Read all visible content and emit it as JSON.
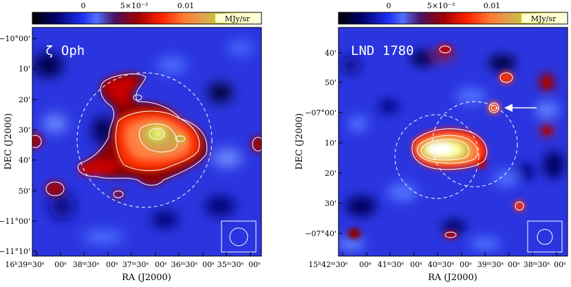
{
  "panels": [
    {
      "id": "zeta-oph",
      "title": "ζ Oph",
      "colorbar": {
        "ticks": [
          "0",
          "5×10⁻³",
          "0.01"
        ],
        "unit": "MJy/sr"
      },
      "ylabel": "DEC (J2000)",
      "xlabel": "RA (J2000)",
      "yticks": [
        "−10°00'",
        "10'",
        "20'",
        "30'",
        "40'",
        "50'",
        "−11°00'",
        "−11°10'"
      ],
      "xticks": [
        "16ʰ39ᵐ30ˢ",
        "00ˢ",
        "38ᵐ30ˢ",
        "00ˢ",
        "37ᵐ30ˢ",
        "00ˢ",
        "36ᵐ30ˢ",
        "00ˢ",
        "35ᵐ30ˢ",
        "00ˢ"
      ]
    },
    {
      "id": "lnd-1780",
      "title": "LND 1780",
      "colorbar": {
        "ticks": [
          "0",
          "5×10⁻³",
          "0.01"
        ],
        "unit": "MJy/sr"
      },
      "ylabel": "DEC (J2000)",
      "xlabel": "RA (J2000)",
      "yticks": [
        "40'",
        "50'",
        "−07°00'",
        "10'",
        "20'",
        "30'",
        "−07°40'"
      ],
      "xticks": [
        "15ʰ42ᵐ30ˢ",
        "00ˢ",
        "41ᵐ30ˢ",
        "00ˢ",
        "40ᵐ30ˢ",
        "00ˢ",
        "39ᵐ30ˢ",
        "00ˢ",
        "38ᵐ30ˢ",
        "00ˢ"
      ]
    }
  ],
  "colors": {
    "background": "#2a35e0",
    "colormap": [
      "#000000",
      "#0000a0",
      "#2030ff",
      "#6080ff",
      "#7a1a5a",
      "#b00000",
      "#ff2000",
      "#ff7030",
      "#ffa060",
      "#c8d040",
      "#ffffa0",
      "#ffffff"
    ]
  }
}
